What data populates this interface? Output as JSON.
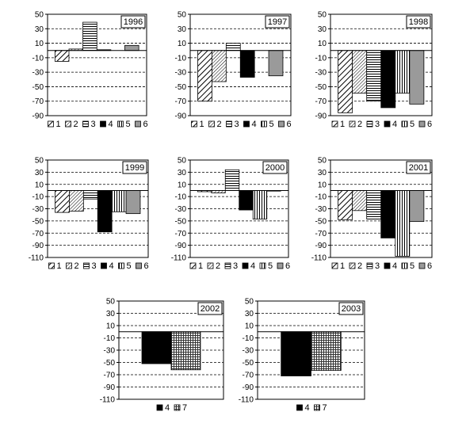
{
  "figure": {
    "name": "yearly-bar-chart-grid"
  },
  "chart_data": [
    {
      "type": "bar",
      "title": "1996",
      "xlabel": "",
      "ylabel": "",
      "ylim": [
        -90,
        50
      ],
      "yticks": [
        50,
        30,
        10,
        -10,
        -30,
        -50,
        -70,
        -90
      ],
      "grid": true,
      "legend": "bottom",
      "categories": [
        "1",
        "2",
        "3",
        "4",
        "5",
        "6"
      ],
      "values": [
        -15,
        2,
        39,
        1,
        0,
        7
      ]
    },
    {
      "type": "bar",
      "title": "1997",
      "xlabel": "",
      "ylabel": "",
      "ylim": [
        -90,
        50
      ],
      "yticks": [
        50,
        30,
        10,
        -10,
        -30,
        -50,
        -70,
        -90
      ],
      "grid": true,
      "legend": "bottom",
      "categories": [
        "1",
        "2",
        "3",
        "4",
        "5",
        "6"
      ],
      "values": [
        -70,
        -43,
        10,
        -37,
        0,
        -35
      ]
    },
    {
      "type": "bar",
      "title": "1998",
      "xlabel": "",
      "ylabel": "",
      "ylim": [
        -90,
        50
      ],
      "yticks": [
        50,
        30,
        10,
        -10,
        -30,
        -50,
        -70,
        -90
      ],
      "grid": true,
      "legend": "bottom",
      "categories": [
        "1",
        "2",
        "3",
        "4",
        "5",
        "6"
      ],
      "values": [
        -86,
        -59,
        -70,
        -79,
        -59,
        -74
      ]
    },
    {
      "type": "bar",
      "title": "1999",
      "xlabel": "",
      "ylabel": "",
      "ylim": [
        -110,
        50
      ],
      "yticks": [
        50,
        30,
        10,
        -10,
        -30,
        -50,
        -70,
        -90,
        -110
      ],
      "grid": true,
      "legend": "bottom",
      "categories": [
        "1",
        "2",
        "3",
        "4",
        "5",
        "6"
      ],
      "values": [
        -36,
        -34,
        -14,
        -68,
        -35,
        -38
      ]
    },
    {
      "type": "bar",
      "title": "2000",
      "xlabel": "",
      "ylabel": "",
      "ylim": [
        -110,
        50
      ],
      "yticks": [
        50,
        30,
        10,
        -10,
        -30,
        -50,
        -70,
        -90,
        -110
      ],
      "grid": true,
      "legend": "bottom",
      "categories": [
        "1",
        "2",
        "3",
        "4",
        "5",
        "6"
      ],
      "values": [
        -2,
        -4,
        34,
        -32,
        -47,
        -1
      ]
    },
    {
      "type": "bar",
      "title": "2001",
      "xlabel": "",
      "ylabel": "",
      "ylim": [
        -110,
        50
      ],
      "yticks": [
        50,
        30,
        10,
        -10,
        -30,
        -50,
        -70,
        -90,
        -110
      ],
      "grid": true,
      "legend": "bottom",
      "categories": [
        "1",
        "2",
        "3",
        "4",
        "5",
        "6"
      ],
      "values": [
        -48,
        -33,
        -47,
        -78,
        -108,
        -51
      ]
    },
    {
      "type": "bar",
      "title": "2002",
      "xlabel": "",
      "ylabel": "",
      "ylim": [
        -110,
        50
      ],
      "yticks": [
        50,
        30,
        10,
        -10,
        -30,
        -50,
        -70,
        -90,
        -110
      ],
      "grid": true,
      "legend": "bottom",
      "categories": [
        "4",
        "7"
      ],
      "values": [
        -52,
        -62
      ]
    },
    {
      "type": "bar",
      "title": "2003",
      "xlabel": "",
      "ylabel": "",
      "ylim": [
        -110,
        50
      ],
      "yticks": [
        50,
        30,
        10,
        -10,
        -30,
        -50,
        -70,
        -90,
        -110
      ],
      "grid": true,
      "legend": "bottom",
      "categories": [
        "4",
        "7"
      ],
      "values": [
        -72,
        -63
      ]
    }
  ]
}
